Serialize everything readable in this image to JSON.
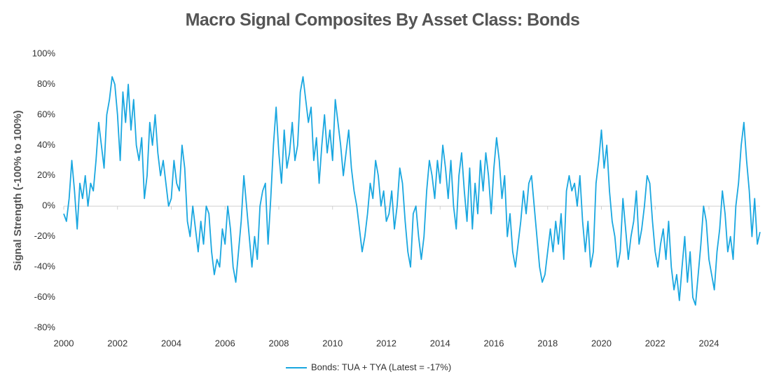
{
  "chart_data": {
    "type": "line",
    "title": "Macro Signal Composites By Asset Class: Bonds",
    "y_label": "Signal Strength (-100% to 100%)",
    "x": [
      2000.0,
      2000.1,
      2000.2,
      2000.3,
      2000.4,
      2000.5,
      2000.6,
      2000.7,
      2000.8,
      2000.9,
      2001.0,
      2001.1,
      2001.2,
      2001.3,
      2001.4,
      2001.5,
      2001.6,
      2001.7,
      2001.8,
      2001.9,
      2002.0,
      2002.1,
      2002.2,
      2002.3,
      2002.4,
      2002.5,
      2002.6,
      2002.7,
      2002.8,
      2002.9,
      2003.0,
      2003.1,
      2003.2,
      2003.3,
      2003.4,
      2003.5,
      2003.6,
      2003.7,
      2003.8,
      2003.9,
      2004.0,
      2004.1,
      2004.2,
      2004.3,
      2004.4,
      2004.5,
      2004.6,
      2004.7,
      2004.8,
      2004.9,
      2005.0,
      2005.1,
      2005.2,
      2005.3,
      2005.4,
      2005.5,
      2005.6,
      2005.7,
      2005.8,
      2005.9,
      2006.0,
      2006.1,
      2006.2,
      2006.3,
      2006.4,
      2006.5,
      2006.6,
      2006.7,
      2006.8,
      2006.9,
      2007.0,
      2007.1,
      2007.2,
      2007.3,
      2007.4,
      2007.5,
      2007.6,
      2007.7,
      2007.8,
      2007.9,
      2008.0,
      2008.1,
      2008.2,
      2008.3,
      2008.4,
      2008.5,
      2008.6,
      2008.7,
      2008.8,
      2008.9,
      2009.0,
      2009.1,
      2009.2,
      2009.3,
      2009.4,
      2009.5,
      2009.6,
      2009.7,
      2009.8,
      2009.9,
      2010.0,
      2010.1,
      2010.2,
      2010.3,
      2010.4,
      2010.5,
      2010.6,
      2010.7,
      2010.8,
      2010.9,
      2011.0,
      2011.1,
      2011.2,
      2011.3,
      2011.4,
      2011.5,
      2011.6,
      2011.7,
      2011.8,
      2011.9,
      2012.0,
      2012.1,
      2012.2,
      2012.3,
      2012.4,
      2012.5,
      2012.6,
      2012.7,
      2012.8,
      2012.9,
      2013.0,
      2013.1,
      2013.2,
      2013.3,
      2013.4,
      2013.5,
      2013.6,
      2013.7,
      2013.8,
      2013.9,
      2014.0,
      2014.1,
      2014.2,
      2014.3,
      2014.4,
      2014.5,
      2014.6,
      2014.7,
      2014.8,
      2014.9,
      2015.0,
      2015.1,
      2015.2,
      2015.3,
      2015.4,
      2015.5,
      2015.6,
      2015.7,
      2015.8,
      2015.9,
      2016.0,
      2016.1,
      2016.2,
      2016.3,
      2016.4,
      2016.5,
      2016.6,
      2016.7,
      2016.8,
      2016.9,
      2017.0,
      2017.1,
      2017.2,
      2017.3,
      2017.4,
      2017.5,
      2017.6,
      2017.7,
      2017.8,
      2017.9,
      2018.0,
      2018.1,
      2018.2,
      2018.3,
      2018.4,
      2018.5,
      2018.6,
      2018.7,
      2018.8,
      2018.9,
      2019.0,
      2019.1,
      2019.2,
      2019.3,
      2019.4,
      2019.5,
      2019.6,
      2019.7,
      2019.8,
      2019.9,
      2020.0,
      2020.1,
      2020.2,
      2020.3,
      2020.4,
      2020.5,
      2020.6,
      2020.7,
      2020.8,
      2020.9,
      2021.0,
      2021.1,
      2021.2,
      2021.3,
      2021.4,
      2021.5,
      2021.6,
      2021.7,
      2021.8,
      2021.9,
      2022.0,
      2022.1,
      2022.2,
      2022.3,
      2022.4,
      2022.5,
      2022.6,
      2022.7,
      2022.8,
      2022.9,
      2023.0,
      2023.1,
      2023.2,
      2023.3,
      2023.4,
      2023.5,
      2023.6,
      2023.7,
      2023.8,
      2023.9,
      2024.0,
      2024.1,
      2024.2,
      2024.3,
      2024.4,
      2024.5,
      2024.6,
      2024.7,
      2024.8,
      2024.9,
      2025.0,
      2025.1,
      2025.2,
      2025.3,
      2025.4,
      2025.5,
      2025.6,
      2025.7,
      2025.8,
      2025.9
    ],
    "series": [
      {
        "name": "Bonds: TUA + TYA (Latest = -17%)",
        "color": "#1aa7e0",
        "values": [
          -5,
          -10,
          5,
          30,
          10,
          -15,
          15,
          5,
          20,
          0,
          15,
          10,
          30,
          55,
          40,
          25,
          60,
          70,
          85,
          80,
          60,
          30,
          75,
          55,
          80,
          50,
          70,
          40,
          30,
          45,
          5,
          20,
          55,
          40,
          60,
          35,
          20,
          30,
          15,
          0,
          5,
          30,
          15,
          10,
          40,
          25,
          -10,
          -20,
          0,
          -15,
          -30,
          -10,
          -25,
          0,
          -5,
          -30,
          -45,
          -35,
          -40,
          -15,
          -25,
          0,
          -15,
          -40,
          -50,
          -30,
          -10,
          20,
          0,
          -20,
          -40,
          -20,
          -35,
          0,
          10,
          15,
          -25,
          5,
          40,
          65,
          35,
          15,
          50,
          25,
          35,
          55,
          30,
          40,
          75,
          85,
          70,
          55,
          65,
          30,
          45,
          15,
          40,
          60,
          35,
          50,
          30,
          70,
          55,
          40,
          20,
          35,
          50,
          25,
          10,
          0,
          -15,
          -30,
          -20,
          -5,
          15,
          5,
          30,
          20,
          0,
          10,
          -10,
          -5,
          10,
          -15,
          0,
          25,
          15,
          -10,
          -30,
          -40,
          -5,
          0,
          -20,
          -35,
          -20,
          10,
          30,
          20,
          5,
          30,
          15,
          40,
          25,
          5,
          30,
          0,
          -15,
          20,
          35,
          10,
          -10,
          25,
          -15,
          15,
          -5,
          30,
          10,
          35,
          20,
          -5,
          25,
          45,
          30,
          5,
          20,
          -20,
          -5,
          -30,
          -40,
          -25,
          -10,
          10,
          -5,
          15,
          20,
          0,
          -20,
          -40,
          -50,
          -45,
          -30,
          -15,
          -30,
          -10,
          -25,
          -5,
          -35,
          10,
          20,
          10,
          15,
          0,
          20,
          -10,
          -30,
          -10,
          -40,
          -30,
          15,
          30,
          50,
          25,
          40,
          10,
          -10,
          -20,
          -40,
          -30,
          5,
          -15,
          -35,
          -20,
          -10,
          10,
          -25,
          -15,
          0,
          20,
          15,
          -10,
          -30,
          -40,
          -25,
          -15,
          -35,
          -10,
          -40,
          -55,
          -45,
          -62,
          -40,
          -20,
          -50,
          -30,
          -60,
          -65,
          -45,
          -25,
          0,
          -10,
          -35,
          -45,
          -55,
          -30,
          -15,
          10,
          -5,
          -30,
          -20,
          -35,
          0,
          15,
          40,
          55,
          30,
          10,
          -20,
          5,
          -25,
          -17
        ]
      }
    ],
    "xlim": [
      2000,
      2025.9
    ],
    "xticks": [
      2000,
      2002,
      2004,
      2006,
      2008,
      2010,
      2012,
      2014,
      2016,
      2018,
      2020,
      2022,
      2024
    ],
    "ylim": [
      -80,
      100
    ],
    "yticks": [
      {
        "value": -80,
        "label": "-80%"
      },
      {
        "value": -60,
        "label": "-60%"
      },
      {
        "value": -40,
        "label": "-40%"
      },
      {
        "value": -20,
        "label": "-20%"
      },
      {
        "value": 0,
        "label": "0%"
      },
      {
        "value": 20,
        "label": "20%"
      },
      {
        "value": 40,
        "label": "40%"
      },
      {
        "value": 60,
        "label": "60%"
      },
      {
        "value": 80,
        "label": "80%"
      },
      {
        "value": 100,
        "label": "100%"
      }
    ],
    "grid": false,
    "legend": "bottom"
  }
}
